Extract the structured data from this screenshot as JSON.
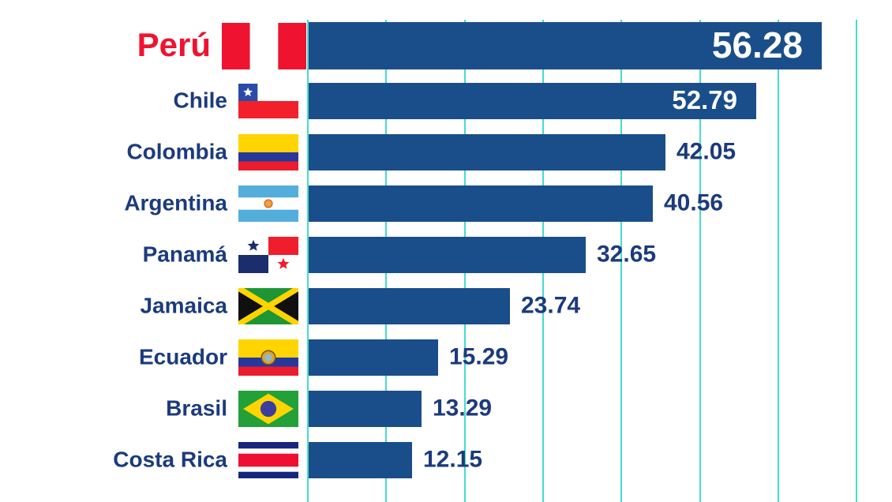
{
  "chart_data": {
    "type": "bar",
    "orientation": "horizontal",
    "title": "",
    "xlabel": "",
    "ylabel": "",
    "legend": null,
    "gridlines": "vertical teal lines, unlabeled",
    "categories": [
      "Perú",
      "Chile",
      "Colombia",
      "Argentina",
      "Panamá",
      "Jamaica",
      "Ecuador",
      "Brasil",
      "Costa Rica"
    ],
    "values": [
      56.28,
      52.79,
      42.05,
      40.56,
      32.65,
      23.74,
      15.29,
      13.29,
      12.15
    ],
    "highlighted_category": "Perú",
    "rows": [
      {
        "country": "Perú",
        "value": "56.28",
        "flag": "peru",
        "highlight": true
      },
      {
        "country": "Chile",
        "value": "52.79",
        "flag": "chile",
        "highlight": false
      },
      {
        "country": "Colombia",
        "value": "42.05",
        "flag": "colombia",
        "highlight": false
      },
      {
        "country": "Argentina",
        "value": "40.56",
        "flag": "argentina",
        "highlight": false
      },
      {
        "country": "Panamá",
        "value": "32.65",
        "flag": "panama",
        "highlight": false
      },
      {
        "country": "Jamaica",
        "value": "23.74",
        "flag": "jamaica",
        "highlight": false
      },
      {
        "country": "Ecuador",
        "value": "15.29",
        "flag": "ecuador",
        "highlight": false
      },
      {
        "country": "Brasil",
        "value": "13.29",
        "flag": "brasil",
        "highlight": false
      },
      {
        "country": "Costa Rica",
        "value": "12.15",
        "flag": "costa_rica",
        "highlight": false
      }
    ],
    "colors": {
      "bar": "#1A4E8A",
      "label_navy": "#1C3B7D",
      "highlight_red": "#EF1330",
      "gridline_teal": "#44DBD2",
      "value_inside_text": "#FFFFFF",
      "background": "#FFFFFF"
    }
  }
}
